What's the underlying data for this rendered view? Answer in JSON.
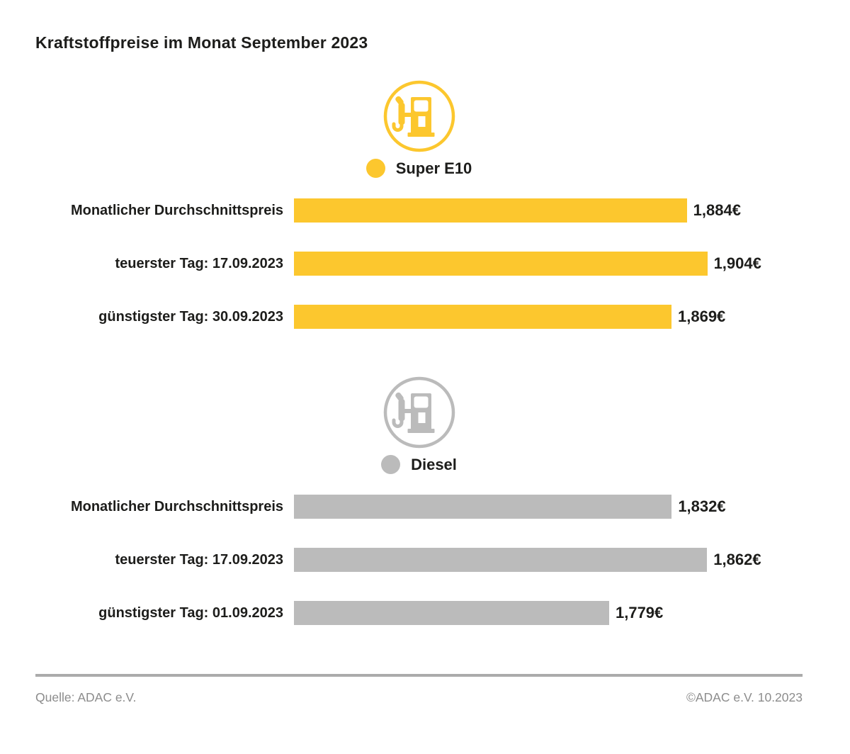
{
  "page": {
    "title": "Kraftstoffpreise im Monat September 2023"
  },
  "footer": {
    "source": "Quelle: ADAC e.V.",
    "copyright": "©ADAC e.V. 10.2023"
  },
  "colors": {
    "super_e10_yellow": "#FCC72E",
    "diesel_gray": "#BBBBBB",
    "text_black": "#1D1D1B",
    "footer_gray": "#8C8C8C",
    "divider_gray": "#ABABAB"
  },
  "icons": {
    "super_e10": "fuel-pump-icon",
    "diesel": "fuel-pump-icon",
    "legend_super": "circle-dot-icon",
    "legend_diesel": "circle-dot-icon"
  },
  "chart_data": [
    {
      "type": "bar",
      "orientation": "horizontal",
      "title": "Super E10",
      "color": "#FCC72E",
      "categories": [
        "Monatlicher Durchschnittspreis",
        "teuerster Tag: 17.09.2023",
        "günstigster Tag: 30.09.2023"
      ],
      "values": [
        1.884,
        1.904,
        1.869
      ],
      "value_labels": [
        "1,884€",
        "1,904€",
        "1,869€"
      ],
      "unit": "€",
      "xlim": [
        1.5,
        1.95
      ],
      "grid": false,
      "legend_position": "top-center"
    },
    {
      "type": "bar",
      "orientation": "horizontal",
      "title": "Diesel",
      "color": "#BBBBBB",
      "categories": [
        "Monatlicher Durchschnittspreis",
        "teuerster Tag: 17.09.2023",
        "günstigster Tag: 01.09.2023"
      ],
      "values": [
        1.832,
        1.862,
        1.779
      ],
      "value_labels": [
        "1,832€",
        "1,862€",
        "1,779€"
      ],
      "unit": "€",
      "xlim": [
        1.512,
        1.902
      ],
      "grid": false,
      "legend_position": "top-center"
    }
  ]
}
